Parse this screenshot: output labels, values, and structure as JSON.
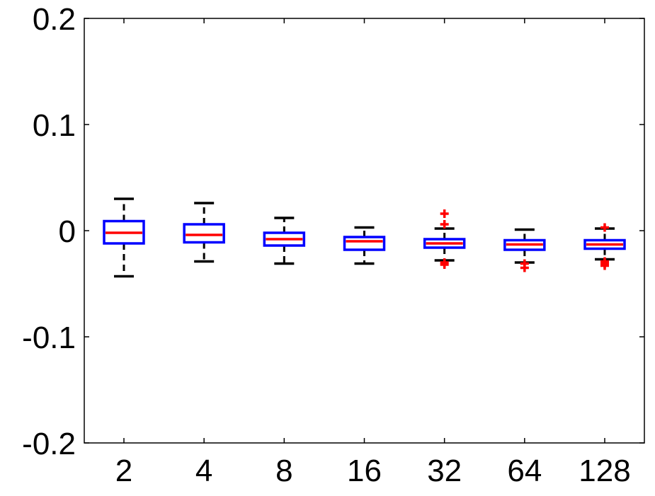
{
  "chart_data": {
    "type": "box",
    "categories": [
      "2",
      "4",
      "8",
      "16",
      "32",
      "64",
      "128"
    ],
    "ylim": [
      -0.2,
      0.2
    ],
    "yticks": [
      {
        "value": 0.2,
        "label": "0.2"
      },
      {
        "value": 0.1,
        "label": "0.1"
      },
      {
        "value": 0,
        "label": "0"
      },
      {
        "value": -0.1,
        "label": "-0.1"
      },
      {
        "value": -0.2,
        "label": "-0.2"
      }
    ],
    "grid": false,
    "colors": {
      "box": "#0000ff",
      "median": "#ff0000",
      "whisker": "#000000",
      "outlier": "#ff0000"
    },
    "boxes": [
      {
        "category": "2",
        "whisker_low": -0.043,
        "q1": -0.012,
        "median": -0.002,
        "q3": 0.009,
        "whisker_high": 0.03,
        "outliers": []
      },
      {
        "category": "4",
        "whisker_low": -0.029,
        "q1": -0.011,
        "median": -0.004,
        "q3": 0.006,
        "whisker_high": 0.026,
        "outliers": []
      },
      {
        "category": "8",
        "whisker_low": -0.031,
        "q1": -0.014,
        "median": -0.008,
        "q3": -0.002,
        "whisker_high": 0.012,
        "outliers": []
      },
      {
        "category": "16",
        "whisker_low": -0.031,
        "q1": -0.018,
        "median": -0.01,
        "q3": -0.006,
        "whisker_high": 0.003,
        "outliers": []
      },
      {
        "category": "32",
        "whisker_low": -0.028,
        "q1": -0.016,
        "median": -0.012,
        "q3": -0.008,
        "whisker_high": 0.002,
        "outliers": [
          0.016,
          0.006,
          -0.03,
          -0.032
        ]
      },
      {
        "category": "64",
        "whisker_low": -0.03,
        "q1": -0.018,
        "median": -0.013,
        "q3": -0.009,
        "whisker_high": 0.001,
        "outliers": [
          -0.031,
          -0.035
        ]
      },
      {
        "category": "128",
        "whisker_low": -0.027,
        "q1": -0.017,
        "median": -0.013,
        "q3": -0.009,
        "whisker_high": 0.002,
        "outliers": [
          0.003,
          -0.029,
          -0.031,
          -0.033
        ]
      }
    ]
  }
}
